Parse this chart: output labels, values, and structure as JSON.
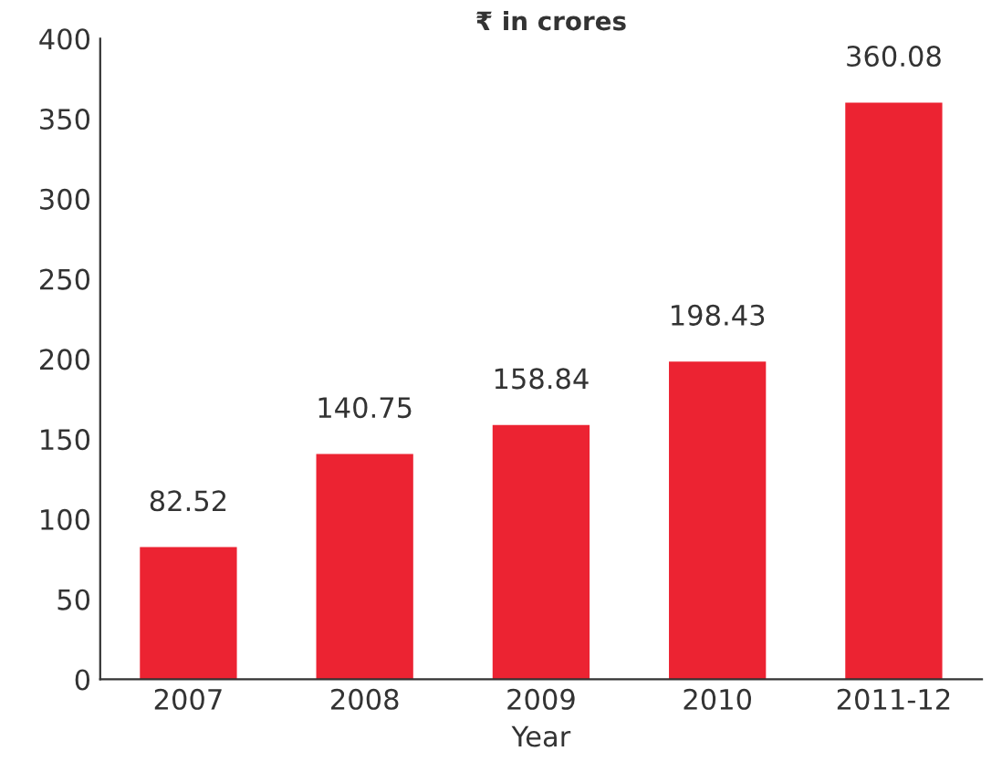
{
  "chart_data": {
    "type": "bar",
    "subtitle": "₹ in crores",
    "xlabel": "Year",
    "categories": [
      "2007",
      "2008",
      "2009",
      "2010",
      "2011-12"
    ],
    "values": [
      82.52,
      140.75,
      158.84,
      198.43,
      360.08
    ],
    "color": "#ec2332",
    "ylim": [
      0,
      400
    ],
    "yticks": [
      0,
      50,
      100,
      150,
      200,
      250,
      300,
      350,
      400
    ],
    "grid": false,
    "data_labels": true
  }
}
